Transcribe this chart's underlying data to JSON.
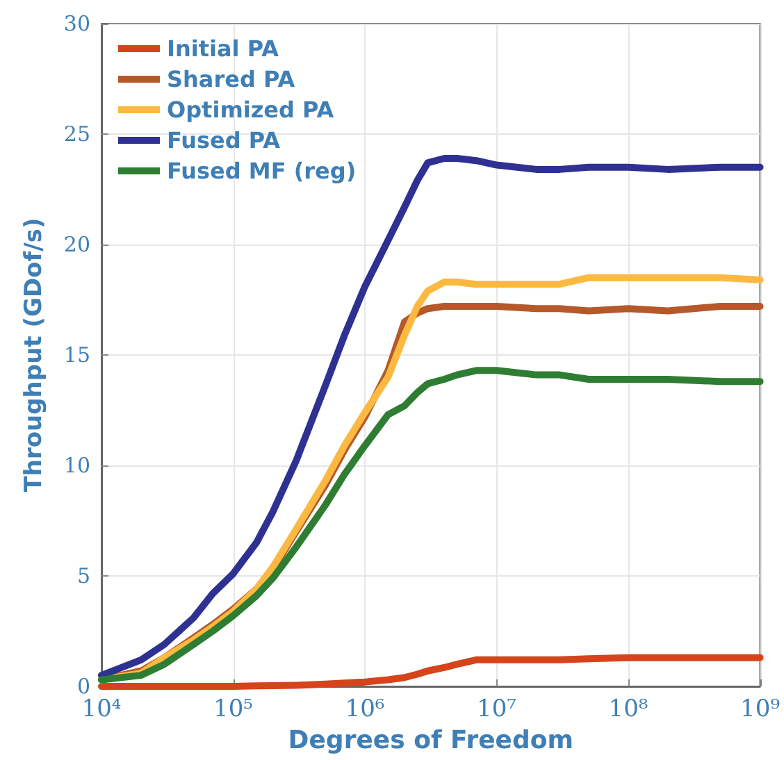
{
  "chart_data": {
    "type": "line",
    "xlabel": "Degrees of Freedom",
    "ylabel": "Throughput (GDof/s)",
    "x": [
      10000,
      20000,
      30000,
      50000,
      70000,
      100000,
      150000,
      200000,
      300000,
      500000,
      700000,
      1000000,
      1500000,
      2000000,
      2500000,
      3000000,
      4000000,
      5000000,
      7000000,
      10000000,
      20000000,
      30000000,
      50000000,
      100000000,
      200000000,
      500000000,
      1000000000
    ],
    "series": [
      {
        "name": "Initial PA",
        "color": "#d6441c",
        "values": [
          0,
          0,
          0,
          0,
          0,
          0,
          0.02,
          0.03,
          0.05,
          0.1,
          0.15,
          0.2,
          0.3,
          0.4,
          0.55,
          0.7,
          0.85,
          1.0,
          1.2,
          1.2,
          1.2,
          1.2,
          1.25,
          1.3,
          1.3,
          1.3,
          1.3
        ]
      },
      {
        "name": "Shared PA",
        "color": "#b5582a",
        "values": [
          0.3,
          0.7,
          1.3,
          2.2,
          2.8,
          3.5,
          4.4,
          5.3,
          7.0,
          9.1,
          10.7,
          12.2,
          14.3,
          16.5,
          16.9,
          17.1,
          17.2,
          17.2,
          17.2,
          17.2,
          17.1,
          17.1,
          17.0,
          17.1,
          17.0,
          17.2,
          17.2
        ]
      },
      {
        "name": "Optimized PA",
        "color": "#fbb941",
        "values": [
          0.3,
          0.6,
          1.3,
          2.1,
          2.7,
          3.4,
          4.4,
          5.4,
          7.1,
          9.3,
          10.9,
          12.4,
          14.0,
          15.9,
          17.2,
          17.9,
          18.3,
          18.3,
          18.2,
          18.2,
          18.2,
          18.2,
          18.5,
          18.5,
          18.5,
          18.5,
          18.4
        ]
      },
      {
        "name": "Fused PA",
        "color": "#2e3192",
        "values": [
          0.5,
          1.2,
          1.9,
          3.1,
          4.2,
          5.1,
          6.5,
          7.9,
          10.2,
          13.6,
          15.9,
          18.1,
          20.2,
          21.7,
          22.9,
          23.7,
          23.9,
          23.9,
          23.8,
          23.6,
          23.4,
          23.4,
          23.5,
          23.5,
          23.4,
          23.5,
          23.5
        ]
      },
      {
        "name": "Fused MF (reg)",
        "color": "#2e7d32",
        "values": [
          0.3,
          0.5,
          1.0,
          1.9,
          2.5,
          3.2,
          4.1,
          4.9,
          6.3,
          8.2,
          9.6,
          10.9,
          12.3,
          12.7,
          13.3,
          13.7,
          13.9,
          14.1,
          14.3,
          14.3,
          14.1,
          14.1,
          13.9,
          13.9,
          13.9,
          13.8,
          13.8
        ]
      }
    ],
    "xlim": [
      10000,
      1000000000
    ],
    "xticks": [
      {
        "value": 10000,
        "label": "10⁴"
      },
      {
        "value": 100000,
        "label": "10⁵"
      },
      {
        "value": 1000000,
        "label": "10⁶"
      },
      {
        "value": 10000000,
        "label": "10⁷"
      },
      {
        "value": 100000000,
        "label": "10⁸"
      },
      {
        "value": 1000000000,
        "label": "10⁹"
      }
    ],
    "ylim": [
      0,
      30
    ],
    "yticks": [
      0,
      5,
      10,
      15,
      20,
      25,
      30
    ],
    "log": "x",
    "grid": true,
    "legend": "top left",
    "marker": "none",
    "line_style": "solid"
  }
}
